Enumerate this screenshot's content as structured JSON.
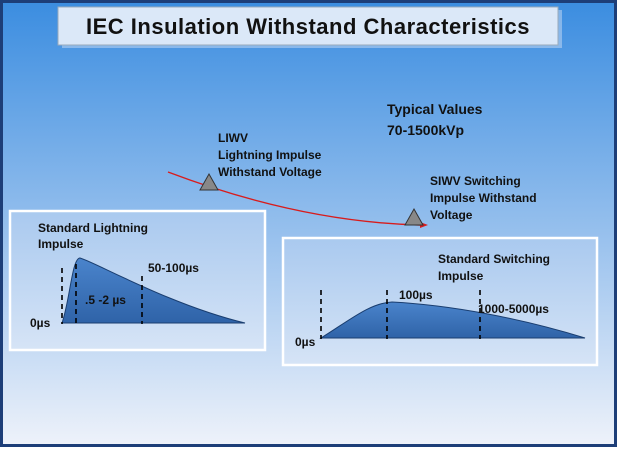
{
  "title": "IEC Insulation Withstand Characteristics",
  "typical_values": [
    "Typical Values",
    "70-1500kVp"
  ],
  "liwv": [
    "LIWV",
    "Lightning Impulse",
    "Withstand Voltage"
  ],
  "siwv": [
    "SIWV  Switching",
    "Impulse Withstand",
    "Voltage"
  ],
  "lightning_panel": {
    "title": [
      "Standard Lightning",
      "Impulse"
    ],
    "zero": "0µs",
    "front": ".5 -2 µs",
    "tail": "50-100µs"
  },
  "switching_panel": {
    "title": [
      "Standard Switching",
      "Impulse"
    ],
    "zero": "0µs",
    "peak": "100µs",
    "tail": "1000-5000µs"
  }
}
